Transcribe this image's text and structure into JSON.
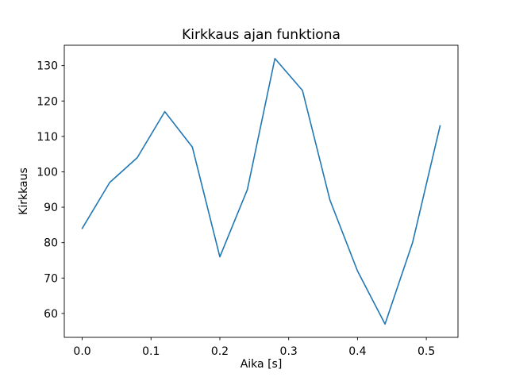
{
  "chart_data": {
    "type": "line",
    "title": "Kirkkaus ajan funktiona",
    "xlabel": "Aika [s]",
    "ylabel": "Kirkkaus",
    "x": [
      0.0,
      0.04,
      0.08,
      0.12,
      0.16,
      0.2,
      0.24,
      0.28,
      0.32,
      0.36,
      0.4,
      0.44,
      0.48,
      0.52
    ],
    "y": [
      84,
      97,
      104,
      117,
      107,
      76,
      95,
      132,
      123,
      92,
      72,
      57,
      80,
      113
    ],
    "xlim": [
      -0.026,
      0.546
    ],
    "ylim": [
      53.25,
      135.75
    ],
    "xticks": [
      0.0,
      0.1,
      0.2,
      0.3,
      0.4,
      0.5
    ],
    "xtick_labels": [
      "0.0",
      "0.1",
      "0.2",
      "0.3",
      "0.4",
      "0.5"
    ],
    "yticks": [
      60,
      70,
      80,
      90,
      100,
      110,
      120,
      130
    ],
    "ytick_labels": [
      "60",
      "70",
      "80",
      "90",
      "100",
      "110",
      "120",
      "130"
    ],
    "line_color": "#1f77b4",
    "axis_color": "#000000",
    "background_color": "#ffffff",
    "grid": false,
    "legend_position": "none"
  }
}
